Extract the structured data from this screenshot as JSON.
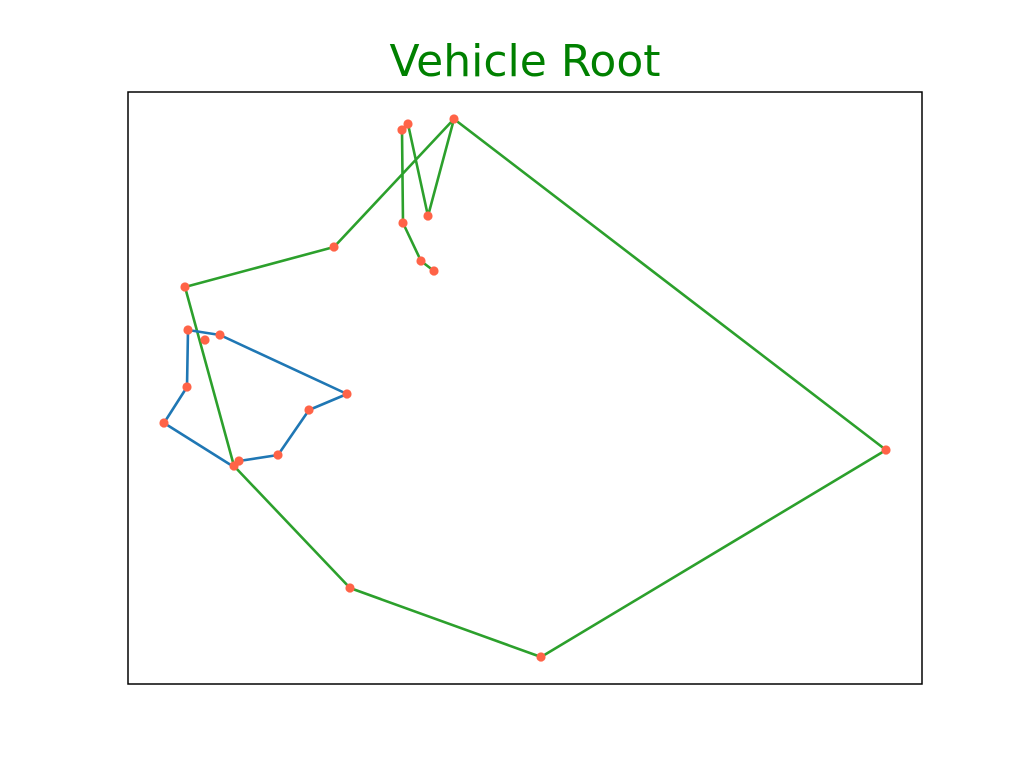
{
  "chart_data": {
    "type": "line",
    "title": "Vehicle Root",
    "title_color": "#008000",
    "xlabel": "",
    "ylabel": "",
    "axes_visible": false,
    "grid": false,
    "legend": "none",
    "xlim": [
      0,
      794
    ],
    "ylim": [
      0,
      592
    ],
    "marker_color": "#ff6347",
    "series": [
      {
        "color": "#2ca02c",
        "x": [
          306,
          293,
          275,
          274,
          280,
          300,
          326,
          206,
          57,
          106,
          222,
          413,
          758,
          326
        ],
        "y": [
          413,
          423,
          461,
          554,
          560,
          468,
          565,
          437,
          397,
          218,
          96,
          27,
          234,
          565
        ]
      },
      {
        "color": "#1f77b4",
        "x": [
          60,
          92,
          219,
          181,
          150,
          111,
          106,
          36,
          59,
          60
        ],
        "y": [
          354,
          349,
          290,
          274,
          229,
          223,
          217,
          261,
          297,
          354
        ]
      }
    ],
    "points": {
      "x": [
        306,
        293,
        275,
        274,
        280,
        300,
        326,
        206,
        57,
        106,
        222,
        413,
        758,
        92,
        219,
        181,
        150,
        111,
        36,
        59,
        60,
        77
      ],
      "y": [
        413,
        423,
        461,
        554,
        560,
        468,
        565,
        437,
        397,
        218,
        96,
        27,
        234,
        349,
        290,
        274,
        229,
        223,
        261,
        297,
        354,
        344
      ]
    }
  }
}
